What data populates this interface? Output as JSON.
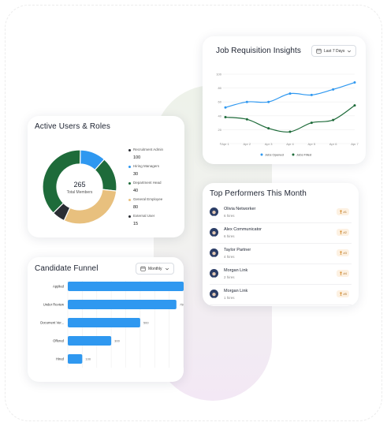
{
  "colors": {
    "blue": "#2f98f0",
    "green": "#1e6b3a",
    "dark": "#2a2d33",
    "tan": "#e8c07e"
  },
  "job_requisition": {
    "title": "Job Requisition Insights",
    "range": "Last 7 Days",
    "icon": "calendar-icon",
    "chart_data": {
      "type": "line",
      "categories": [
        "Apr 1",
        "Apr 2",
        "Apr 3",
        "Apr 4",
        "Apr 5",
        "Apr 6",
        "Apr 7"
      ],
      "ylim": [
        0,
        100
      ],
      "yticks": [
        "100",
        "80",
        "60",
        "40",
        "20",
        "0"
      ],
      "series": [
        {
          "name": "Jobs Opened",
          "values": [
            52,
            60,
            60,
            72,
            70,
            78,
            88
          ],
          "color": "#2f98f0"
        },
        {
          "name": "Jobs Filled",
          "values": [
            38,
            35,
            22,
            17,
            30,
            34,
            55
          ],
          "color": "#1e6b3a"
        }
      ]
    }
  },
  "active_users": {
    "title": "Active Users & Roles",
    "total": "265",
    "total_label": "Total Members",
    "chart_data": {
      "type": "pie",
      "categories": [
        "Recruitment Admin",
        "Hiring Managers",
        "Department Head",
        "General Employee",
        "External User"
      ],
      "values": [
        100,
        30,
        40,
        80,
        15
      ],
      "colors": [
        "#1e6b3a",
        "#2f98f0",
        "#1e6b3a",
        "#e8c07e",
        "#2a2d33"
      ]
    },
    "legend": [
      {
        "name": "Recruitment Admin",
        "value": "100",
        "color": "#2a2d33"
      },
      {
        "name": "Hiring Managers",
        "value": "30",
        "color": "#2f98f0"
      },
      {
        "name": "Department Head",
        "value": "40",
        "color": "#1e6b3a"
      },
      {
        "name": "General Employee",
        "value": "80",
        "color": "#e8c07e"
      },
      {
        "name": "External User",
        "value": "15",
        "color": "#2a2d33"
      }
    ]
  },
  "top_performers": {
    "title": "Top Performers This Month",
    "people": [
      {
        "name": "Olivia Networker",
        "hires": "6 hires",
        "rank": "#1"
      },
      {
        "name": "Alex Communicator",
        "hires": "6 hires",
        "rank": "#2"
      },
      {
        "name": "Taylor Partner",
        "hires": "4 hires",
        "rank": "#3"
      },
      {
        "name": "Morgan Link",
        "hires": "2 hires",
        "rank": "#4"
      },
      {
        "name": "Morgan Link",
        "hires": "1 hires",
        "rank": "#5"
      }
    ]
  },
  "funnel": {
    "title": "Candidate Funnel",
    "range": "Monthly",
    "chart_data": {
      "type": "bar",
      "categories": [
        "Applied",
        "Under Review",
        "Document Ver...",
        "Offered",
        "Hired"
      ],
      "values": [
        800,
        750,
        500,
        300,
        100
      ],
      "xlim": [
        0,
        800
      ],
      "color": "#2f98f0"
    }
  }
}
